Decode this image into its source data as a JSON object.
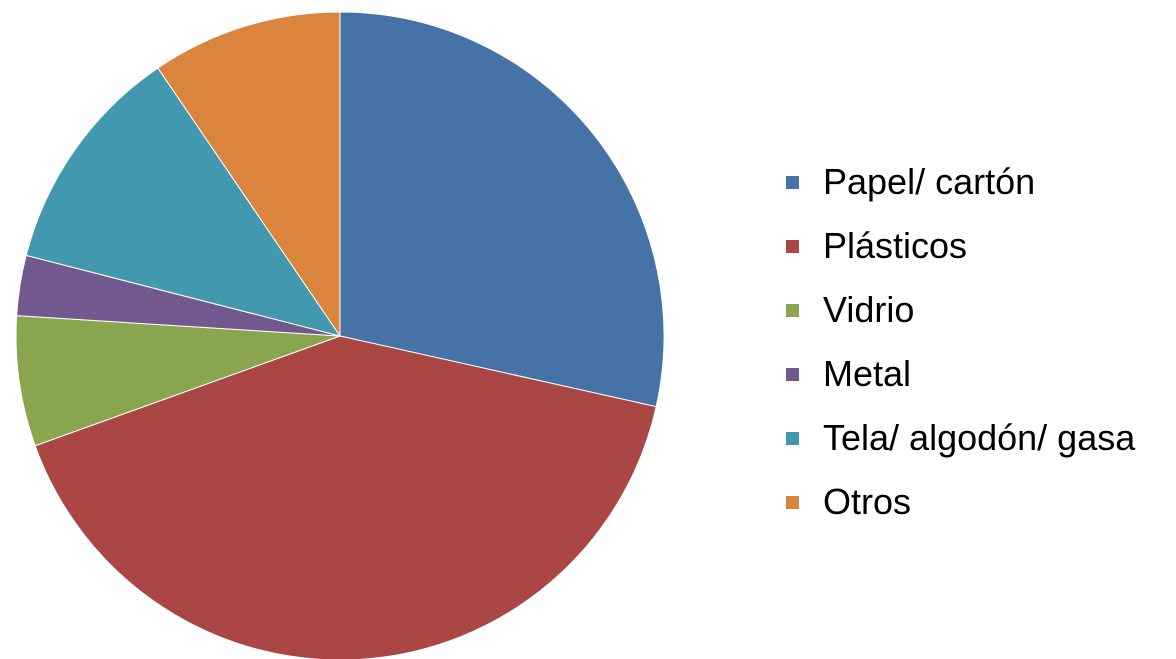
{
  "chart_data": {
    "type": "pie",
    "start_angle_deg": 0,
    "direction": "clockwise",
    "legend_position": "right",
    "slices": [
      {
        "label": "Papel/ cartón",
        "value": 28.5,
        "color": "#4572a7"
      },
      {
        "label": "Plásticos",
        "value": 41.0,
        "color": "#aa4643"
      },
      {
        "label": "Vidrio",
        "value": 6.5,
        "color": "#89a54e"
      },
      {
        "label": "Metal",
        "value": 3.0,
        "color": "#71588f"
      },
      {
        "label": "Tela/ algodón/ gasa",
        "value": 11.5,
        "color": "#4198af"
      },
      {
        "label": "Otros",
        "value": 9.5,
        "color": "#db843d"
      }
    ]
  }
}
